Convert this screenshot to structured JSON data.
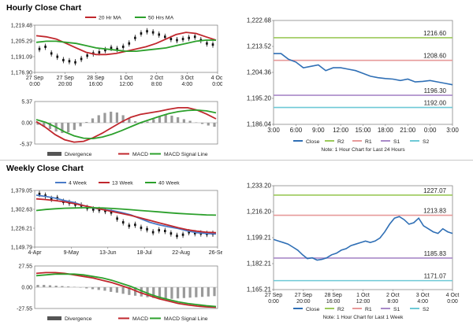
{
  "hourly": {
    "title": "Hourly Close Chart",
    "price_chart": {
      "type": "line",
      "legend": [
        "20 Hr MA",
        "50 Hrs MA"
      ],
      "y_ticks": [
        "1,219.48",
        "1,205.29",
        "1,191.09",
        "1,176.90"
      ],
      "ylim": [
        1176.9,
        1219.48
      ],
      "x_labels": [
        [
          "27 Sep",
          "0:00"
        ],
        [
          "27 Sep",
          "20:00"
        ],
        [
          "28 Sep",
          "16:00"
        ],
        [
          "1 Oct",
          "12:00"
        ],
        [
          "2 Oct",
          "8:00"
        ],
        [
          "3 Oct",
          "4:00"
        ],
        [
          "4 Oct",
          "0:00"
        ]
      ],
      "series": [
        {
          "name": "20 Hr MA",
          "color": "#c0272d",
          "values": [
            1210,
            1209,
            1207,
            1203,
            1199,
            1195,
            1193,
            1193,
            1194,
            1196,
            1198,
            1200,
            1203,
            1207,
            1211,
            1213,
            1212,
            1209,
            1206
          ]
        },
        {
          "name": "50 Hrs MA",
          "color": "#2ca02c",
          "values": [
            1204,
            1205,
            1205,
            1204,
            1203,
            1201,
            1199,
            1198,
            1197,
            1196,
            1196,
            1197,
            1198,
            1199,
            1201,
            1203,
            1205,
            1206,
            1206
          ]
        }
      ],
      "candles": [
        1198,
        1200,
        1194,
        1191,
        1188,
        1187,
        1186,
        1189,
        1192,
        1194,
        1195,
        1197,
        1199,
        1198,
        1200,
        1203,
        1208,
        1212,
        1214,
        1213,
        1211,
        1209,
        1207,
        1206,
        1207,
        1208,
        1209,
        1206,
        1203,
        1202
      ]
    },
    "macd_chart": {
      "type": "bar",
      "y_ticks": [
        "5.37",
        "0.00",
        "-5.37"
      ],
      "ylim": [
        -5.37,
        5.37
      ],
      "legend": [
        "Divergence",
        "MACD",
        "MACD Signal Line"
      ],
      "divergence": [
        -0.5,
        -1,
        -1.6,
        -2.2,
        -2.6,
        -2.4,
        -1.8,
        -0.9,
        0.2,
        1.1,
        1.9,
        2.5,
        2.8,
        2.6,
        1.9,
        1.1,
        0.4,
        -0.2,
        0.3,
        0.9,
        1.6,
        2.0,
        1.8,
        1.4,
        0.9,
        0.5,
        0.1,
        -0.3,
        -0.7,
        -1.0
      ],
      "series": [
        {
          "name": "MACD",
          "color": "#c0272d",
          "values": [
            0.3,
            -1.2,
            -3.0,
            -4.3,
            -4.9,
            -4.7,
            -3.8,
            -2.6,
            -1.2,
            0.2,
            1.4,
            2.1,
            2.5,
            2.9,
            3.4,
            3.8,
            3.8,
            3.2,
            2.2,
            1.0
          ]
        },
        {
          "name": "MACD Signal Line",
          "color": "#2ca02c",
          "values": [
            0.8,
            0.1,
            -1.0,
            -2.3,
            -3.3,
            -3.9,
            -4.0,
            -3.6,
            -2.9,
            -2.0,
            -1.0,
            0.0,
            0.8,
            1.6,
            2.3,
            2.8,
            3.1,
            3.2,
            3.0,
            2.5
          ]
        }
      ]
    },
    "level_chart": {
      "type": "line",
      "y_ticks": [
        "1,222.68",
        "1,213.52",
        "1,204.36",
        "1,195.20",
        "1,186.04"
      ],
      "ylim": [
        1186.04,
        1222.68
      ],
      "x_labels": [
        "3:00",
        "6:00",
        "9:00",
        "12:00",
        "15:00",
        "18:00",
        "21:00",
        "0:00",
        "3:00"
      ],
      "levels": [
        {
          "name": "R2",
          "label": "1216.60",
          "value": 1216.6,
          "color": "#9bc95a"
        },
        {
          "name": "R1",
          "label": "1208.60",
          "value": 1208.6,
          "color": "#e79a9a"
        },
        {
          "name": "S1",
          "label": "1196.30",
          "value": 1196.3,
          "color": "#a98ac8"
        },
        {
          "name": "S2",
          "label": "1192.00",
          "value": 1192.0,
          "color": "#6ec9d6"
        }
      ],
      "close": [
        1211,
        1211,
        1209,
        1208,
        1206,
        1206.5,
        1207,
        1205,
        1206,
        1206,
        1205.5,
        1205,
        1204,
        1203,
        1202.5,
        1202.2,
        1202,
        1201.5,
        1202,
        1201,
        1201.2,
        1201.5,
        1201,
        1200.5,
        1200
      ],
      "legend": [
        "Close",
        "R2",
        "R1",
        "S1",
        "S2"
      ],
      "note": "Note: 1 Hour Chart for Last 24 Hours"
    }
  },
  "weekly": {
    "title": "Weekly Close Chart",
    "price_chart": {
      "type": "line",
      "legend": [
        "4 Week",
        "13 Week",
        "40 Week"
      ],
      "y_ticks": [
        "1,379.05",
        "1,302.63",
        "1,226.21",
        "1,149.79"
      ],
      "ylim": [
        1149.79,
        1379.05
      ],
      "x_labels": [
        "4-Apr",
        "9-May",
        "13-Jun",
        "18-Jul",
        "22-Aug",
        "26-Sep"
      ],
      "series": [
        {
          "name": "4 Week",
          "color": "#4a7bc8",
          "values": [
            1360,
            1355,
            1348,
            1338,
            1330,
            1318,
            1308,
            1302,
            1298,
            1290,
            1280,
            1265,
            1250,
            1240,
            1232,
            1225,
            1215,
            1208,
            1205,
            1203
          ]
        },
        {
          "name": "13 Week",
          "color": "#c0272d",
          "values": [
            1345,
            1342,
            1338,
            1333,
            1326,
            1318,
            1310,
            1302,
            1294,
            1286,
            1278,
            1268,
            1258,
            1248,
            1238,
            1228,
            1220,
            1214,
            1210,
            1208
          ]
        },
        {
          "name": "40 Week",
          "color": "#2ca02c",
          "values": [
            1298,
            1302,
            1305,
            1307,
            1308,
            1309,
            1309,
            1308,
            1306,
            1304,
            1301,
            1298,
            1295,
            1292,
            1289,
            1286,
            1284,
            1282,
            1280,
            1279
          ]
        }
      ],
      "candles": [
        1365,
        1358,
        1345,
        1348,
        1333,
        1329,
        1322,
        1318,
        1308,
        1302,
        1300,
        1296,
        1290,
        1265,
        1250,
        1236,
        1240,
        1228,
        1222,
        1210,
        1218,
        1215,
        1205,
        1195,
        1200,
        1210,
        1206,
        1205,
        1203,
        1204
      ]
    },
    "macd_chart": {
      "type": "bar",
      "y_ticks": [
        "27.55",
        "0.00",
        "-27.55"
      ],
      "ylim": [
        -27.55,
        27.55
      ],
      "legend": [
        "Divergence",
        "MACD",
        "MACD Signal Line"
      ],
      "divergence": [
        3,
        3,
        2.5,
        2,
        1.5,
        1,
        0.5,
        -0.5,
        -1.5,
        -2.5,
        -3.5,
        -4.5,
        -6,
        -7,
        -8.5,
        -10,
        -11,
        -12,
        -13,
        -14,
        -14.5,
        -15,
        -15,
        -14.5,
        -14,
        -13.5,
        -13,
        -12.5,
        -12,
        -11.5
      ],
      "series": [
        {
          "name": "MACD",
          "color": "#c0272d",
          "values": [
            18,
            19,
            19,
            18,
            16,
            14,
            12,
            9,
            6,
            2,
            -2,
            -7,
            -11,
            -15,
            -18,
            -21,
            -23,
            -24.5,
            -25.5,
            -26
          ]
        },
        {
          "name": "MACD Signal Line",
          "color": "#2ca02c",
          "values": [
            15,
            16,
            17,
            17,
            17,
            16,
            14,
            12,
            9,
            5,
            1,
            -4,
            -9,
            -13,
            -16,
            -19,
            -21,
            -22.5,
            -24,
            -25
          ]
        }
      ]
    },
    "level_chart": {
      "type": "line",
      "y_ticks": [
        "1,233.20",
        "1,216.20",
        "1,199.21",
        "1,182.21",
        "1,165.21"
      ],
      "ylim": [
        1165.21,
        1233.2
      ],
      "x_labels": [
        [
          "27 Sep",
          "0:00"
        ],
        [
          "27 Sep",
          "20:00"
        ],
        [
          "28 Sep",
          "16:00"
        ],
        [
          "1 Oct",
          "12:00"
        ],
        [
          "2 Oct",
          "8:00"
        ],
        [
          "3 Oct",
          "4:00"
        ],
        [
          "4 Oct",
          "0:00"
        ]
      ],
      "levels": [
        {
          "name": "R2",
          "label": "1227.07",
          "value": 1227.07,
          "color": "#9bc95a"
        },
        {
          "name": "R1",
          "label": "1213.83",
          "value": 1213.83,
          "color": "#e79a9a"
        },
        {
          "name": "S1",
          "label": "1185.83",
          "value": 1185.83,
          "color": "#a98ac8"
        },
        {
          "name": "S2",
          "label": "1171.07",
          "value": 1171.07,
          "color": "#6ec9d6"
        }
      ],
      "close": [
        1198,
        1197,
        1196,
        1195,
        1193,
        1191,
        1188,
        1185.5,
        1186,
        1184.5,
        1185,
        1186,
        1188,
        1189,
        1191,
        1192,
        1194,
        1195,
        1196,
        1197,
        1196,
        1197,
        1199,
        1203,
        1208,
        1212,
        1213,
        1211,
        1208,
        1209,
        1212,
        1207,
        1205,
        1203,
        1202,
        1205,
        1203,
        1202
      ],
      "legend": [
        "Close",
        "R2",
        "R1",
        "S1",
        "S2"
      ],
      "note": "Note: 1 Hour Chart for Last 1 Week"
    }
  }
}
